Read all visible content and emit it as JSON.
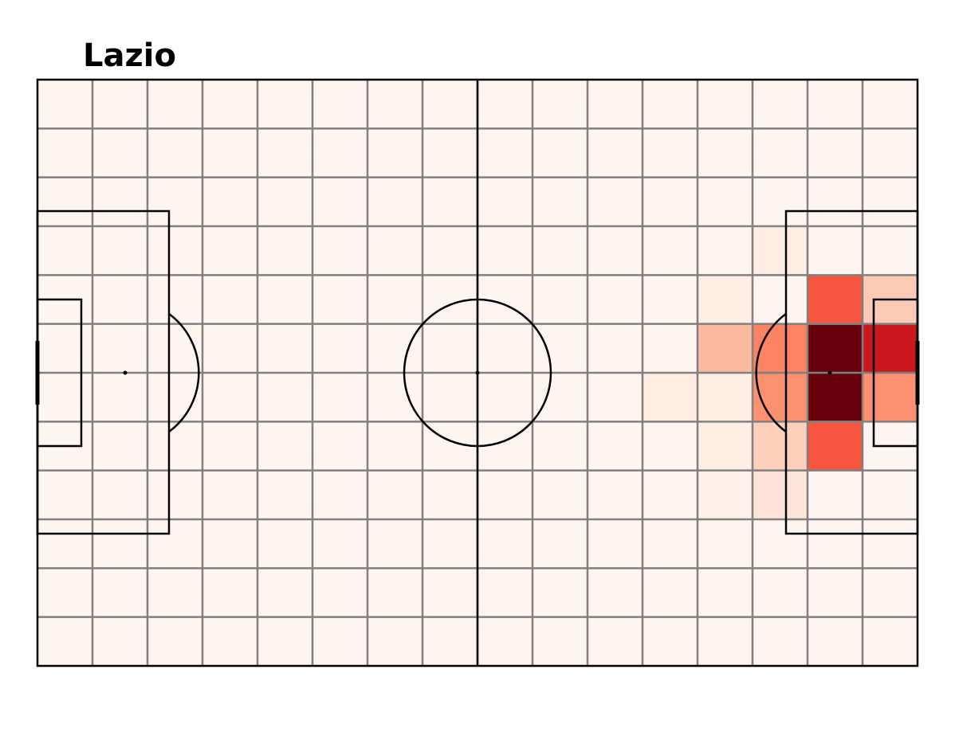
{
  "title": "Lazio",
  "chart_data": {
    "type": "heatmap",
    "title": "Lazio",
    "rows": 12,
    "cols": 16,
    "colormap": "Reds",
    "vmin": 0,
    "vmax": 1,
    "grid": true,
    "values": [
      [
        0,
        0,
        0,
        0,
        0,
        0,
        0,
        0,
        0,
        0,
        0,
        0,
        0,
        0,
        0,
        0
      ],
      [
        0,
        0,
        0,
        0,
        0,
        0,
        0,
        0,
        0,
        0,
        0,
        0,
        0,
        0,
        0,
        0
      ],
      [
        0,
        0,
        0,
        0,
        0,
        0,
        0,
        0,
        0,
        0,
        0,
        0,
        0,
        0,
        0,
        0
      ],
      [
        0,
        0,
        0,
        0,
        0,
        0,
        0,
        0,
        0,
        0,
        0,
        0,
        0,
        0.05,
        0,
        0
      ],
      [
        0,
        0,
        0,
        0,
        0,
        0,
        0,
        0,
        0,
        0,
        0,
        0,
        0.05,
        0,
        0.55,
        0.2
      ],
      [
        0,
        0,
        0,
        0,
        0,
        0,
        0,
        0,
        0,
        0,
        0,
        0,
        0.25,
        0.42,
        1.0,
        0.75
      ],
      [
        0,
        0,
        0,
        0,
        0,
        0,
        0,
        0,
        0,
        0,
        0,
        0.05,
        0.05,
        0.38,
        1.0,
        0.38
      ],
      [
        0,
        0,
        0,
        0,
        0,
        0,
        0,
        0,
        0,
        0,
        0,
        0,
        0.05,
        0.18,
        0.55,
        0
      ],
      [
        0,
        0,
        0,
        0,
        0,
        0,
        0,
        0,
        0,
        0,
        0,
        0,
        0.03,
        0.1,
        0,
        0
      ],
      [
        0,
        0,
        0,
        0,
        0,
        0,
        0,
        0,
        0,
        0,
        0,
        0,
        0,
        0,
        0,
        0
      ],
      [
        0,
        0,
        0,
        0,
        0,
        0,
        0,
        0,
        0,
        0,
        0,
        0,
        0,
        0,
        0,
        0
      ],
      [
        0,
        0,
        0,
        0,
        0,
        0,
        0,
        0,
        0,
        0,
        0,
        0,
        0,
        0,
        0,
        0
      ]
    ]
  },
  "colors": {
    "cell_grid": "#808080",
    "pitch_lines": "#000000",
    "low": "#fff5f0",
    "high": "#67000d"
  }
}
